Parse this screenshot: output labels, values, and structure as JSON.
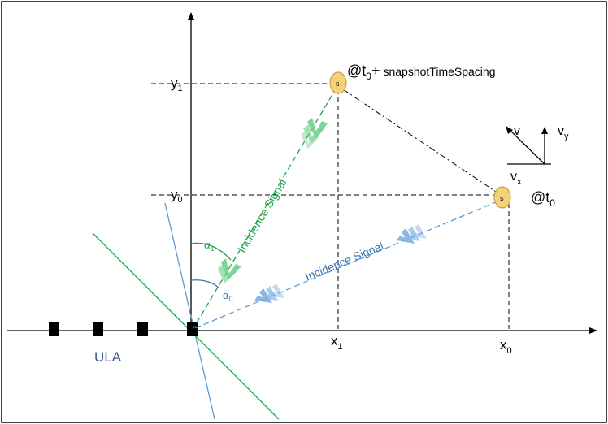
{
  "labels": {
    "y1_label": "y",
    "y1_sub": "1",
    "y0_label": "y",
    "y0_sub": "0",
    "x1_label": "x",
    "x1_sub": "1",
    "x0_label": "x",
    "x0_sub": "0",
    "source_glyph": "s",
    "at_t0_prefix": "@t",
    "at_t0_sub": "0",
    "snapshot_plus": "+",
    "snapshot_text": "snapshotTimeSpacing",
    "v_label": "v",
    "vy_label": "v",
    "vy_sub": "y",
    "vx_label": "v",
    "vx_sub": "x",
    "incidence_green": "Incidence Signal",
    "incidence_blue": "Incidence Signal",
    "alpha1": "α",
    "alpha1_sub": "1",
    "alpha0": "α",
    "alpha0_sub": "0",
    "ula_label": "ULA"
  },
  "colors": {
    "green": "#22a24a",
    "light_green": "#6fd08f",
    "blue": "#3a72b0",
    "light_blue": "#7eb0e0",
    "source_fill": "#f3d27a",
    "source_stroke": "#c9a23c",
    "ula_text": "#3a5a8c"
  }
}
